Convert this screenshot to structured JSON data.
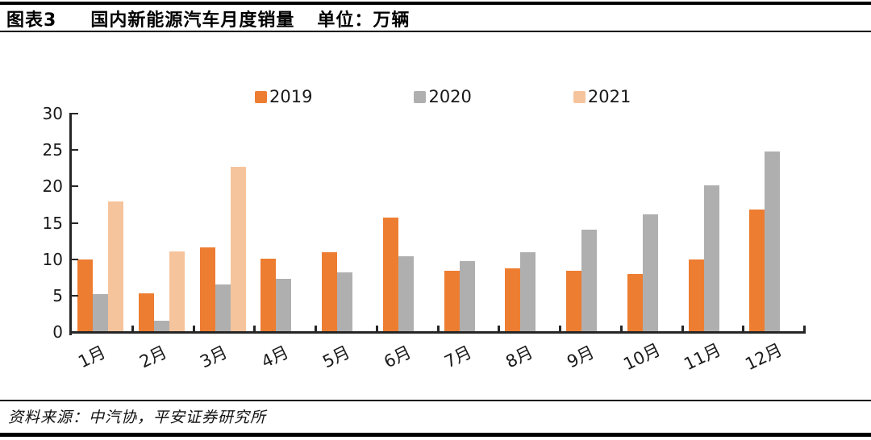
{
  "header": {
    "label": "图表3",
    "title": "国内新能源汽车月度销量",
    "unit": "单位：万辆"
  },
  "footer": {
    "source": "资料来源：中汽协，平安证券研究所"
  },
  "chart_data": {
    "type": "bar",
    "title": "国内新能源汽车月度销量",
    "unit_label": "万辆",
    "categories": [
      "1月",
      "2月",
      "3月",
      "4月",
      "5月",
      "6月",
      "7月",
      "8月",
      "9月",
      "10月",
      "11月",
      "12月"
    ],
    "series": [
      {
        "name": "2019",
        "color": "#ED7D31",
        "values": [
          10.0,
          5.3,
          11.6,
          10.1,
          11.0,
          15.7,
          8.4,
          8.8,
          8.4,
          8.0,
          10.0,
          16.8
        ]
      },
      {
        "name": "2020",
        "color": "#AFAFAF",
        "values": [
          5.2,
          1.6,
          6.5,
          7.3,
          8.2,
          10.4,
          9.7,
          11.0,
          14.1,
          16.2,
          20.1,
          24.8
        ]
      },
      {
        "name": "2021",
        "color": "#F6C49C",
        "values": [
          17.9,
          11.1,
          22.7,
          null,
          null,
          null,
          null,
          null,
          null,
          null,
          null,
          null
        ]
      }
    ],
    "ylim": [
      0,
      30
    ],
    "yticks": [
      0,
      5,
      10,
      15,
      20,
      25,
      30
    ],
    "grid": false,
    "legend_position": "top",
    "colors": {
      "accent_orange": "#ED7D31",
      "gray": "#AFAFAF",
      "light_orange": "#F6C49C",
      "axis": "#262626"
    }
  }
}
